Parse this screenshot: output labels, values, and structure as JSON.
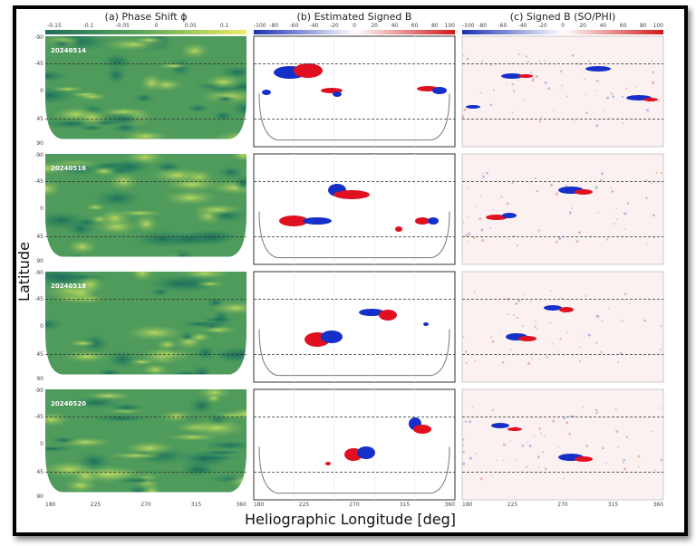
{
  "figure": {
    "panel_titles": [
      "(a) Phase Shift ϕ",
      "(b) Estimated Signed B",
      "(c) Signed B (SO/PHI)"
    ],
    "colorbars": [
      {
        "ticks": [
          "-0.15",
          "-0.1",
          "-0.05",
          "0",
          "0.05",
          "0.1"
        ],
        "colors": [
          "#1f6e5a",
          "#5ea85a",
          "#f2ee6a"
        ]
      },
      {
        "ticks": [
          "-100",
          "-80",
          "-60",
          "-40",
          "-20",
          "0",
          "20",
          "40",
          "60",
          "80",
          "100"
        ],
        "colors": [
          "#1a2fb0",
          "#ffffff",
          "#d01818"
        ]
      },
      {
        "ticks": [
          "-100",
          "-80",
          "-60",
          "-40",
          "-20",
          "0",
          "20",
          "40",
          "60",
          "80",
          "100"
        ],
        "colors": [
          "#1a2fb0",
          "#ffffff",
          "#d01818"
        ]
      }
    ],
    "dates": [
      "20240514",
      "20240516",
      "20240518",
      "20240520"
    ],
    "latitude_ticks": [
      "-90",
      "-45",
      "0",
      "45",
      "90"
    ],
    "longitude_ticks": [
      "180",
      "225",
      "270",
      "315",
      "360"
    ],
    "ylabel": "Latitude",
    "xlabel": "Heliographic Longitude [deg]"
  }
}
